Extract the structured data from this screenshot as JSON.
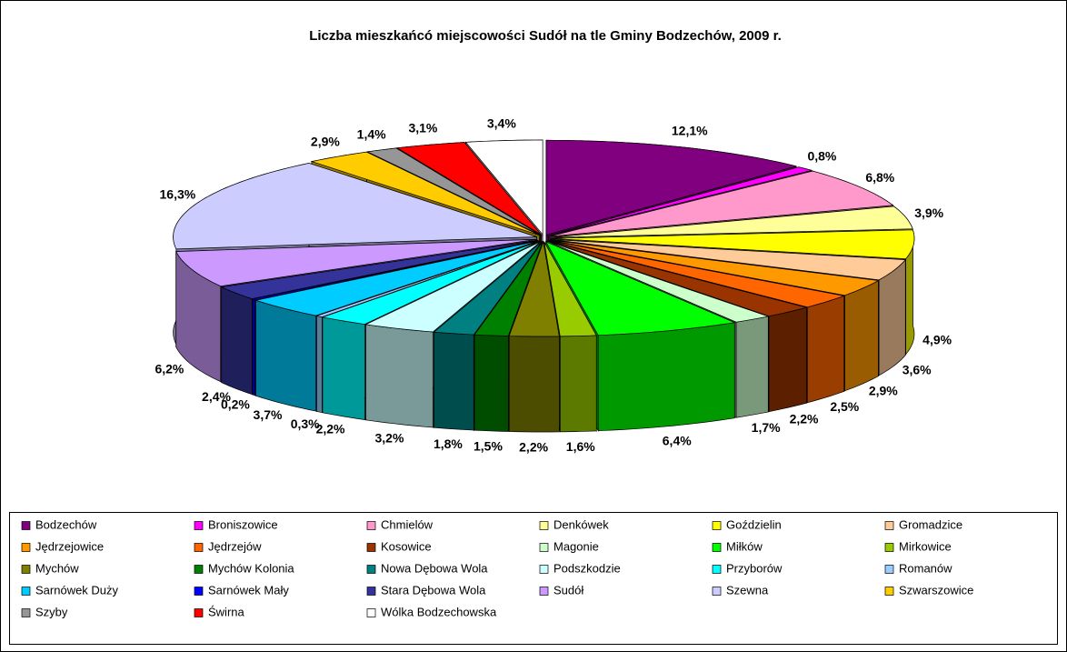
{
  "chart_data": {
    "type": "pie3d",
    "title": "Liczba mieszkańcó miejscowości Sudół na tle Gminy Bodzechów, 2009 r.",
    "categories": [
      "Bodzechów",
      "Broniszowice",
      "Chmielów",
      "Denkówek",
      "Goździelin",
      "Gromadzice",
      "Jędrzejowice",
      "Jędrzejów",
      "Kosowice",
      "Magonie",
      "Miłków",
      "Mirkowice",
      "Mychów",
      "Mychów Kolonia",
      "Nowa Dębowa Wola",
      "Podszkodzie",
      "Przyborów",
      "Romanów",
      "Sarnówek Duży",
      "Sarnówek Mały",
      "Stara Dębowa Wola",
      "Sudół",
      "Szewna",
      "Szwarszowice",
      "Szyby",
      "Świrna",
      "Wólka Bodzechowska"
    ],
    "values": [
      12.1,
      0.8,
      6.8,
      3.9,
      4.9,
      3.6,
      2.9,
      2.5,
      2.2,
      1.7,
      6.4,
      1.6,
      2.2,
      1.5,
      1.8,
      3.2,
      2.2,
      0.3,
      3.7,
      0.2,
      2.4,
      6.2,
      16.3,
      2.9,
      1.4,
      3.1,
      3.4
    ],
    "value_labels": [
      "12,1%",
      "0,8%",
      "6,8%",
      "3,9%",
      "4,9%",
      "3,6%",
      "2,9%",
      "2,5%",
      "2,2%",
      "1,7%",
      "6,4%",
      "1,6%",
      "2,2%",
      "1,5%",
      "1,8%",
      "3,2%",
      "2,2%",
      "0,3%",
      "3,7%",
      "0,2%",
      "2,4%",
      "6,2%",
      "16,3%",
      "2,9%",
      "1,4%",
      "3,1%",
      "3,4%"
    ],
    "colors": [
      "#800080",
      "#ff00ff",
      "#ff99cc",
      "#ffff99",
      "#ffff00",
      "#ffcc99",
      "#ff9900",
      "#ff6600",
      "#993300",
      "#ccffcc",
      "#00ff00",
      "#99cc00",
      "#808000",
      "#008000",
      "#008080",
      "#ccffff",
      "#00ffff",
      "#99ccff",
      "#00ccff",
      "#0000ff",
      "#333399",
      "#cc99ff",
      "#ccccff",
      "#ffcc00",
      "#969696",
      "#ff0000",
      "#ffffff"
    ],
    "legend": "bottom"
  }
}
